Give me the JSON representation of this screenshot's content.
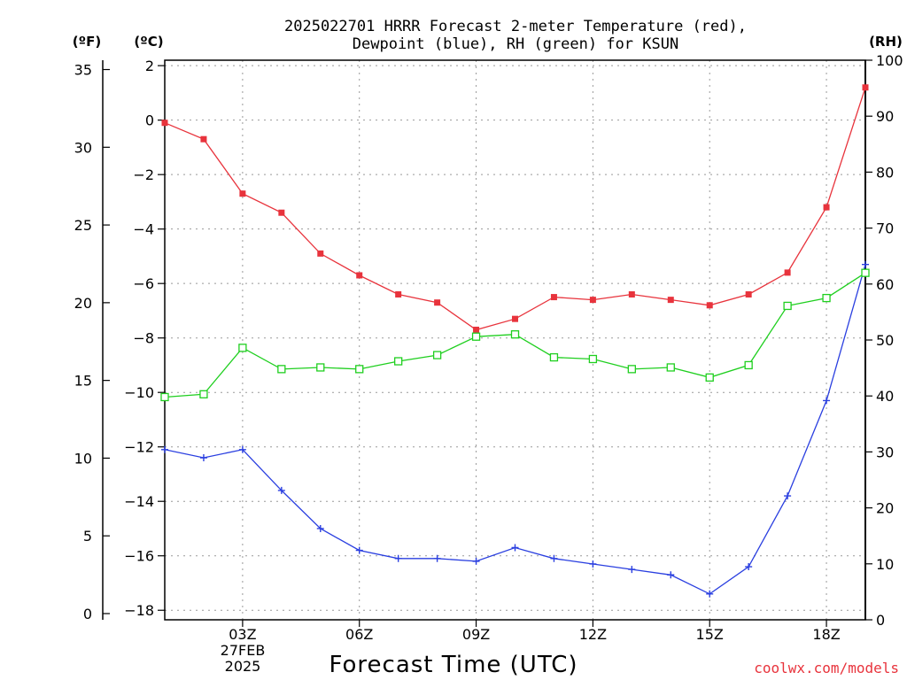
{
  "header": {
    "title_line1": "2025022701 HRRR Forecast 2-meter Temperature (red),",
    "title_line2": "Dewpoint (blue), RH (green) for KSUN",
    "unit_f": "(ºF)",
    "unit_c": "(ºC)",
    "unit_rh": "(RH)"
  },
  "footer": {
    "xlabel": "Forecast Time (UTC)",
    "credit": "coolwx.com/models",
    "date_line1": "27FEB",
    "date_line2": "2025"
  },
  "chart_data": {
    "type": "line",
    "title": "2025022701 HRRR Forecast 2-meter Temperature (red), Dewpoint (blue), RH (green) for KSUN",
    "xlabel": "Forecast Time (UTC)",
    "x": [
      "01Z",
      "02Z",
      "03Z",
      "04Z",
      "05Z",
      "06Z",
      "07Z",
      "08Z",
      "09Z",
      "10Z",
      "11Z",
      "12Z",
      "13Z",
      "14Z",
      "15Z",
      "16Z",
      "17Z",
      "18Z",
      "19Z"
    ],
    "x_tick_labels": [
      "03Z",
      "06Z",
      "09Z",
      "12Z",
      "15Z",
      "18Z"
    ],
    "x_tick_hours": [
      3,
      6,
      9,
      12,
      15,
      18
    ],
    "xlim_hours": [
      1,
      19
    ],
    "left_axis_f": {
      "label": "(ºF)",
      "ticks": [
        0,
        5,
        10,
        15,
        20,
        25,
        30,
        35
      ],
      "ylim": [
        -0.4,
        35.6
      ]
    },
    "left_axis_c": {
      "label": "(ºC)",
      "ticks": [
        2,
        0,
        -2,
        -4,
        -6,
        -8,
        -10,
        -12,
        -14,
        -16,
        -18
      ],
      "ylim": [
        -18.35,
        2.2
      ]
    },
    "right_axis_rh": {
      "label": "(RH)",
      "ticks": [
        0,
        10,
        20,
        30,
        40,
        50,
        60,
        70,
        80,
        90,
        100
      ],
      "ylim": [
        0,
        100
      ]
    },
    "grid": true,
    "series": [
      {
        "name": "Temperature",
        "axis": "c",
        "color": "#e8333c",
        "marker": "filled-square",
        "values": [
          -0.1,
          -0.7,
          -2.7,
          -3.4,
          -4.9,
          -5.7,
          -6.4,
          -6.7,
          -7.7,
          -7.3,
          -6.5,
          -6.6,
          -6.4,
          -6.6,
          -6.8,
          -6.4,
          -5.6,
          -3.2,
          1.2
        ]
      },
      {
        "name": "Dewpoint",
        "axis": "c",
        "color": "#2a3fe0",
        "marker": "plus",
        "values": [
          -12.1,
          -12.4,
          -12.1,
          -13.6,
          -15.0,
          -15.8,
          -16.1,
          -16.1,
          -16.2,
          -15.7,
          -16.1,
          -16.3,
          -16.5,
          -16.7,
          -17.4,
          -16.4,
          -13.8,
          -10.3,
          -5.3
        ]
      },
      {
        "name": "RH",
        "axis": "rh",
        "color": "#1fcf1f",
        "marker": "open-square",
        "values": [
          39.8,
          40.3,
          48.6,
          44.8,
          45.1,
          44.8,
          46.2,
          47.3,
          50.6,
          51.0,
          46.9,
          46.6,
          44.8,
          45.1,
          43.3,
          45.5,
          56.1,
          57.5,
          62.0
        ]
      }
    ]
  }
}
